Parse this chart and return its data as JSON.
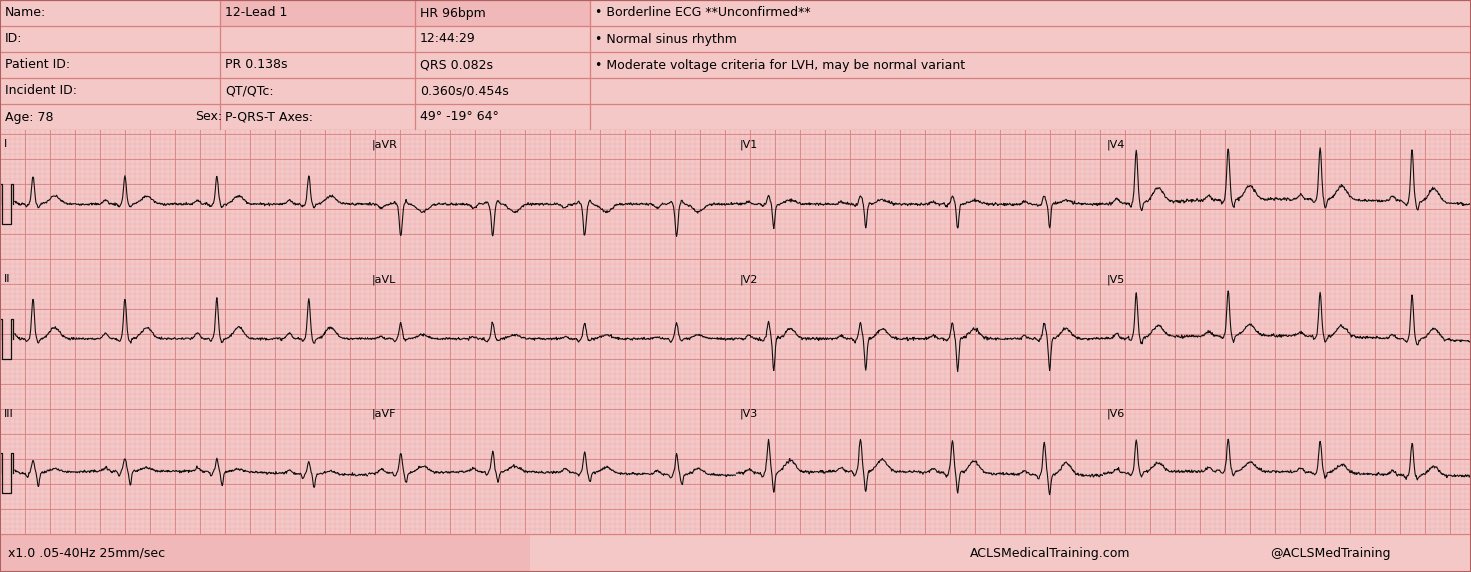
{
  "bg_color": "#f5c8c8",
  "grid_major_color": "#d88080",
  "grid_minor_color": "#e8a8a8",
  "ecg_color": "#111111",
  "title_text": {
    "name_label": "Name:",
    "id_label": "ID:",
    "patient_id_label": "Patient ID:",
    "incident_id_label": "Incident ID:",
    "age_label": "Age: 78",
    "sex_label": "Sex:",
    "lead_label": "12-Lead 1",
    "hr_label": "HR 96bpm",
    "time_label": "12:44:29",
    "pr_label": "PR 0.138s",
    "qrs_label": "QRS 0.082s",
    "qt_label": "QT/QTc:",
    "qt_val": "0.360s/0.454s",
    "axes_label": "P-QRS-T Axes:",
    "axes_val": "49° -19° 64°",
    "interp1": "• Borderline ECG **Unconfirmed**",
    "interp2": "• Normal sinus rhythm",
    "interp3": "• Moderate voltage criteria for LVH, may be normal variant",
    "footer_left": "x1.0 .05-40Hz 25mm/sec",
    "footer_right1": "ACLSMedicalTraining.com",
    "footer_right2": "@ACLSMedTraining"
  }
}
